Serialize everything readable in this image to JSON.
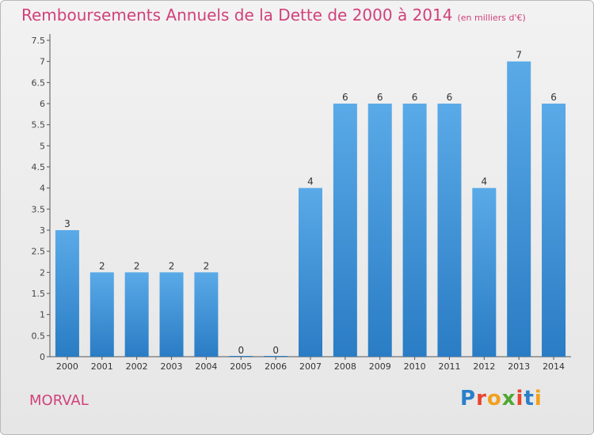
{
  "header": {
    "title": "Remboursements Annuels de la Dette de 2000 à 2014",
    "unit": "(en milliers d'€)"
  },
  "footer": {
    "town": "MORVAL",
    "logo_text": "Proxiti",
    "logo_colors": [
      "#2a7fc9",
      "#e8442e",
      "#f2a01c",
      "#4ea832",
      "#e8442e",
      "#2a7fc9",
      "#f2a01c"
    ]
  },
  "chart_data": {
    "type": "bar",
    "categories": [
      "2000",
      "2001",
      "2002",
      "2003",
      "2004",
      "2005",
      "2006",
      "2007",
      "2008",
      "2009",
      "2010",
      "2011",
      "2012",
      "2013",
      "2014"
    ],
    "values": [
      3,
      2,
      2,
      2,
      2,
      0,
      0,
      4,
      6,
      6,
      6,
      6,
      4,
      7,
      6
    ],
    "title": "Remboursements Annuels de la Dette de 2000 à 2014",
    "ylim": [
      0,
      7.5
    ],
    "yticks": [
      "0",
      "0.5",
      "1",
      "1.5",
      "2",
      "2.5",
      "3",
      "3.5",
      "4",
      "4.5",
      "5",
      "5.5",
      "6",
      "6.5",
      "7",
      "7.5"
    ],
    "grid": false,
    "bar_color": "#4a9de0",
    "bar_color_dark": "#2c7fc8"
  }
}
